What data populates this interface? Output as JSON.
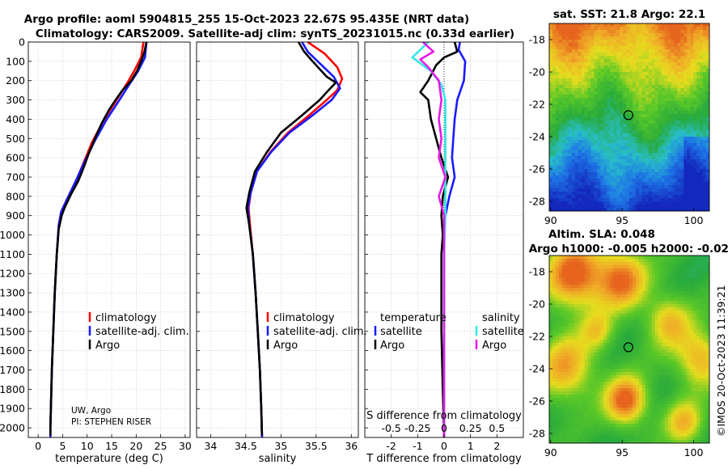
{
  "titles": {
    "line1": "Argo profile: aoml 5904815_255 15-Oct-2023 22.67S 95.435E (NRT data)",
    "line2": "Climatology: CARS2009. Satellite-adj clim: synTS_20231015.nc (0.33d earlier)"
  },
  "depth_ticks": [
    "0",
    "100",
    "200",
    "300",
    "400",
    "500",
    "600",
    "700",
    "800",
    "900",
    "1000",
    "1100",
    "1200",
    "1300",
    "1400",
    "1500",
    "1600",
    "1700",
    "1800",
    "1900",
    "2000"
  ],
  "colors": {
    "red": "#ff0000",
    "blue": "#1a1aff",
    "black": "#000000",
    "cyan": "#33e6e6",
    "magenta": "#e619e6"
  },
  "chart_data": [
    {
      "type": "line",
      "name": "temperature",
      "xlabel": "temperature (deg C)",
      "ylabel": "depth",
      "xlim": [
        -2,
        31
      ],
      "ylim": [
        2050,
        0
      ],
      "x_ticks": [
        "0",
        "5",
        "10",
        "15",
        "20",
        "25",
        "30"
      ],
      "legend": {
        "placement": "middle-right",
        "entries": [
          "climatology",
          "satellite-adj. clim.",
          "Argo"
        ]
      },
      "annotations": [
        "UW, Argo",
        "PI: STEPHEN RISER"
      ],
      "series": [
        {
          "name": "climatology",
          "color": "red",
          "points": [
            [
              21.5,
              0
            ],
            [
              21,
              80
            ],
            [
              19.6,
              150
            ],
            [
              18,
              220
            ],
            [
              16,
              300
            ],
            [
              13.5,
              400
            ],
            [
              11,
              520
            ],
            [
              9.2,
              630
            ],
            [
              7.6,
              730
            ],
            [
              5.8,
              820
            ],
            [
              4.7,
              880
            ],
            [
              4.2,
              950
            ],
            [
              3.8,
              1100
            ],
            [
              3.4,
              1300
            ],
            [
              3.1,
              1500
            ],
            [
              2.8,
              1700
            ],
            [
              2.6,
              1900
            ],
            [
              2.5,
              2000
            ],
            [
              2.5,
              2050
            ]
          ]
        },
        {
          "name": "satellite-adj. clim.",
          "color": "blue",
          "points": [
            [
              22.1,
              0
            ],
            [
              21.8,
              80
            ],
            [
              20.4,
              150
            ],
            [
              18.6,
              220
            ],
            [
              16.6,
              300
            ],
            [
              14,
              400
            ],
            [
              11.4,
              520
            ],
            [
              9.3,
              630
            ],
            [
              7.5,
              730
            ],
            [
              5.8,
              820
            ],
            [
              4.7,
              880
            ],
            [
              4.2,
              950
            ],
            [
              3.8,
              1100
            ],
            [
              3.4,
              1300
            ],
            [
              3.1,
              1500
            ],
            [
              2.8,
              1700
            ],
            [
              2.6,
              1900
            ],
            [
              2.5,
              2000
            ],
            [
              2.5,
              2050
            ]
          ]
        },
        {
          "name": "Argo",
          "color": "black",
          "points": [
            [
              22.1,
              0
            ],
            [
              21.7,
              50
            ],
            [
              21,
              100
            ],
            [
              20.2,
              150
            ],
            [
              19,
              200
            ],
            [
              17.2,
              250
            ],
            [
              15.8,
              300
            ],
            [
              14.5,
              350
            ],
            [
              13,
              420
            ],
            [
              11.6,
              500
            ],
            [
              10.3,
              580
            ],
            [
              9.3,
              650
            ],
            [
              8.2,
              720
            ],
            [
              6.7,
              790
            ],
            [
              5.4,
              860
            ],
            [
              4.8,
              900
            ],
            [
              4.2,
              970
            ],
            [
              3.8,
              1100
            ],
            [
              3.4,
              1300
            ],
            [
              3.1,
              1500
            ],
            [
              2.8,
              1700
            ],
            [
              2.6,
              1900
            ],
            [
              2.5,
              2000
            ],
            [
              2.5,
              2040
            ]
          ]
        }
      ]
    },
    {
      "type": "line",
      "name": "salinity",
      "xlabel": "salinity",
      "ylim": [
        2050,
        0
      ],
      "xlim": [
        33.8,
        36.1
      ],
      "x_ticks": [
        "34",
        "34.5",
        "35",
        "35.5",
        "36"
      ],
      "legend": {
        "placement": "middle-right",
        "entries": [
          "climatology",
          "satellite-adj. clim.",
          "Argo"
        ]
      },
      "series": [
        {
          "name": "climatology",
          "color": "red",
          "points": [
            [
              35.38,
              0
            ],
            [
              35.62,
              60
            ],
            [
              35.8,
              130
            ],
            [
              35.87,
              190
            ],
            [
              35.8,
              250
            ],
            [
              35.65,
              300
            ],
            [
              35.4,
              380
            ],
            [
              35.1,
              470
            ],
            [
              34.85,
              570
            ],
            [
              34.66,
              670
            ],
            [
              34.57,
              780
            ],
            [
              34.54,
              860
            ],
            [
              34.56,
              950
            ],
            [
              34.6,
              1100
            ],
            [
              34.64,
              1300
            ],
            [
              34.67,
              1500
            ],
            [
              34.7,
              1700
            ],
            [
              34.72,
              1900
            ],
            [
              34.73,
              2050
            ]
          ]
        },
        {
          "name": "satellite-adj. clim.",
          "color": "blue",
          "points": [
            [
              35.3,
              0
            ],
            [
              35.38,
              50
            ],
            [
              35.55,
              110
            ],
            [
              35.75,
              180
            ],
            [
              35.84,
              240
            ],
            [
              35.72,
              300
            ],
            [
              35.45,
              380
            ],
            [
              35.12,
              470
            ],
            [
              34.86,
              570
            ],
            [
              34.66,
              670
            ],
            [
              34.57,
              780
            ],
            [
              34.53,
              860
            ],
            [
              34.55,
              950
            ],
            [
              34.6,
              1100
            ],
            [
              34.64,
              1300
            ],
            [
              34.67,
              1500
            ],
            [
              34.7,
              1700
            ],
            [
              34.72,
              1900
            ],
            [
              34.73,
              2050
            ]
          ]
        },
        {
          "name": "Argo",
          "color": "black",
          "points": [
            [
              35.25,
              0
            ],
            [
              35.33,
              50
            ],
            [
              35.45,
              100
            ],
            [
              35.65,
              180
            ],
            [
              35.78,
              210
            ],
            [
              35.65,
              260
            ],
            [
              35.55,
              300
            ],
            [
              35.3,
              380
            ],
            [
              35.0,
              470
            ],
            [
              34.8,
              570
            ],
            [
              34.63,
              670
            ],
            [
              34.55,
              780
            ],
            [
              34.51,
              860
            ],
            [
              34.55,
              950
            ],
            [
              34.6,
              1100
            ],
            [
              34.64,
              1300
            ],
            [
              34.67,
              1500
            ],
            [
              34.7,
              1700
            ],
            [
              34.72,
              1900
            ],
            [
              34.73,
              2040
            ]
          ]
        }
      ]
    },
    {
      "type": "line",
      "name": "differences",
      "xlabel": "T difference from climatology",
      "x2label": "S difference from climatology",
      "xlim": [
        -3,
        3
      ],
      "ylim": [
        2050,
        0
      ],
      "x_ticks": [
        "-2",
        "-1",
        "0",
        "1",
        "2"
      ],
      "s_ticks": [
        "-0.5",
        "-0.25",
        "0",
        "0.25",
        "0.5"
      ],
      "legend_t": {
        "title": "temperature",
        "entries": [
          "satellite",
          "Argo"
        ]
      },
      "legend_s": {
        "title": "salinity",
        "entries": [
          "satellite",
          "Argo"
        ]
      },
      "series": [
        {
          "name": "T satellite",
          "color": "blue",
          "points": [
            [
              0.6,
              0
            ],
            [
              0.55,
              40
            ],
            [
              0.8,
              100
            ],
            [
              0.75,
              200
            ],
            [
              0.5,
              300
            ],
            [
              0.4,
              400
            ],
            [
              0.35,
              500
            ],
            [
              0.3,
              600
            ],
            [
              0.4,
              700
            ],
            [
              0.2,
              800
            ],
            [
              0.05,
              900
            ],
            [
              0.0,
              1000
            ],
            [
              0.0,
              2050
            ]
          ]
        },
        {
          "name": "T Argo",
          "color": "black",
          "points": [
            [
              0.4,
              0
            ],
            [
              0.5,
              50
            ],
            [
              0.0,
              80
            ],
            [
              -0.3,
              120
            ],
            [
              -0.6,
              200
            ],
            [
              -0.9,
              260
            ],
            [
              -0.6,
              300
            ],
            [
              -0.5,
              400
            ],
            [
              -0.3,
              500
            ],
            [
              -0.1,
              600
            ],
            [
              0.15,
              700
            ],
            [
              -0.05,
              800
            ],
            [
              -0.1,
              900
            ],
            [
              -0.05,
              1000
            ],
            [
              -0.1,
              1100
            ],
            [
              -0.1,
              1500
            ],
            [
              -0.05,
              1800
            ],
            [
              0.0,
              2050
            ]
          ]
        },
        {
          "name": "S satellite",
          "color": "cyan",
          "points": [
            [
              -0.6,
              0
            ],
            [
              -1.2,
              80
            ],
            [
              -0.5,
              150
            ],
            [
              -0.1,
              220
            ],
            [
              0.05,
              300
            ],
            [
              0.05,
              500
            ],
            [
              0.05,
              700
            ],
            [
              0.05,
              900
            ],
            [
              0.0,
              1100
            ],
            [
              0.0,
              2050
            ]
          ]
        },
        {
          "name": "S Argo",
          "color": "magenta",
          "points": [
            [
              -0.8,
              0
            ],
            [
              -0.4,
              50
            ],
            [
              -0.9,
              90
            ],
            [
              -0.6,
              130
            ],
            [
              -0.2,
              200
            ],
            [
              -0.1,
              300
            ],
            [
              -0.2,
              400
            ],
            [
              -0.1,
              500
            ],
            [
              -0.2,
              600
            ],
            [
              0.05,
              700
            ],
            [
              -0.2,
              800
            ],
            [
              0.0,
              900
            ],
            [
              0.0,
              2050
            ]
          ]
        }
      ]
    },
    {
      "type": "heatmap",
      "name": "sst_map",
      "title": "sat. SST: 21.8 Argo: 22.1",
      "x_ticks": [
        "90",
        "95",
        "100"
      ],
      "y_ticks": [
        "-18",
        "-20",
        "-22",
        "-24",
        "-26",
        "-28"
      ],
      "xlim": [
        89.9,
        101.1
      ],
      "ylim": [
        -28.6,
        -17
      ]
    },
    {
      "type": "heatmap",
      "name": "sla_map",
      "title": "Altim. SLA: 0.048",
      "subtitle": "Argo h1000: -0.005 h2000: -0.028",
      "x_ticks": [
        "90",
        "95",
        "100"
      ],
      "y_ticks": [
        "-18",
        "-20",
        "-22",
        "-24",
        "-26",
        "-28"
      ],
      "xlim": [
        89.9,
        101.1
      ],
      "ylim": [
        -28.6,
        -17
      ]
    }
  ],
  "argo_position": {
    "lon": 95.435,
    "lat": -22.67
  },
  "credit": "©IMOS 20-Oct-2023 11:39:21"
}
